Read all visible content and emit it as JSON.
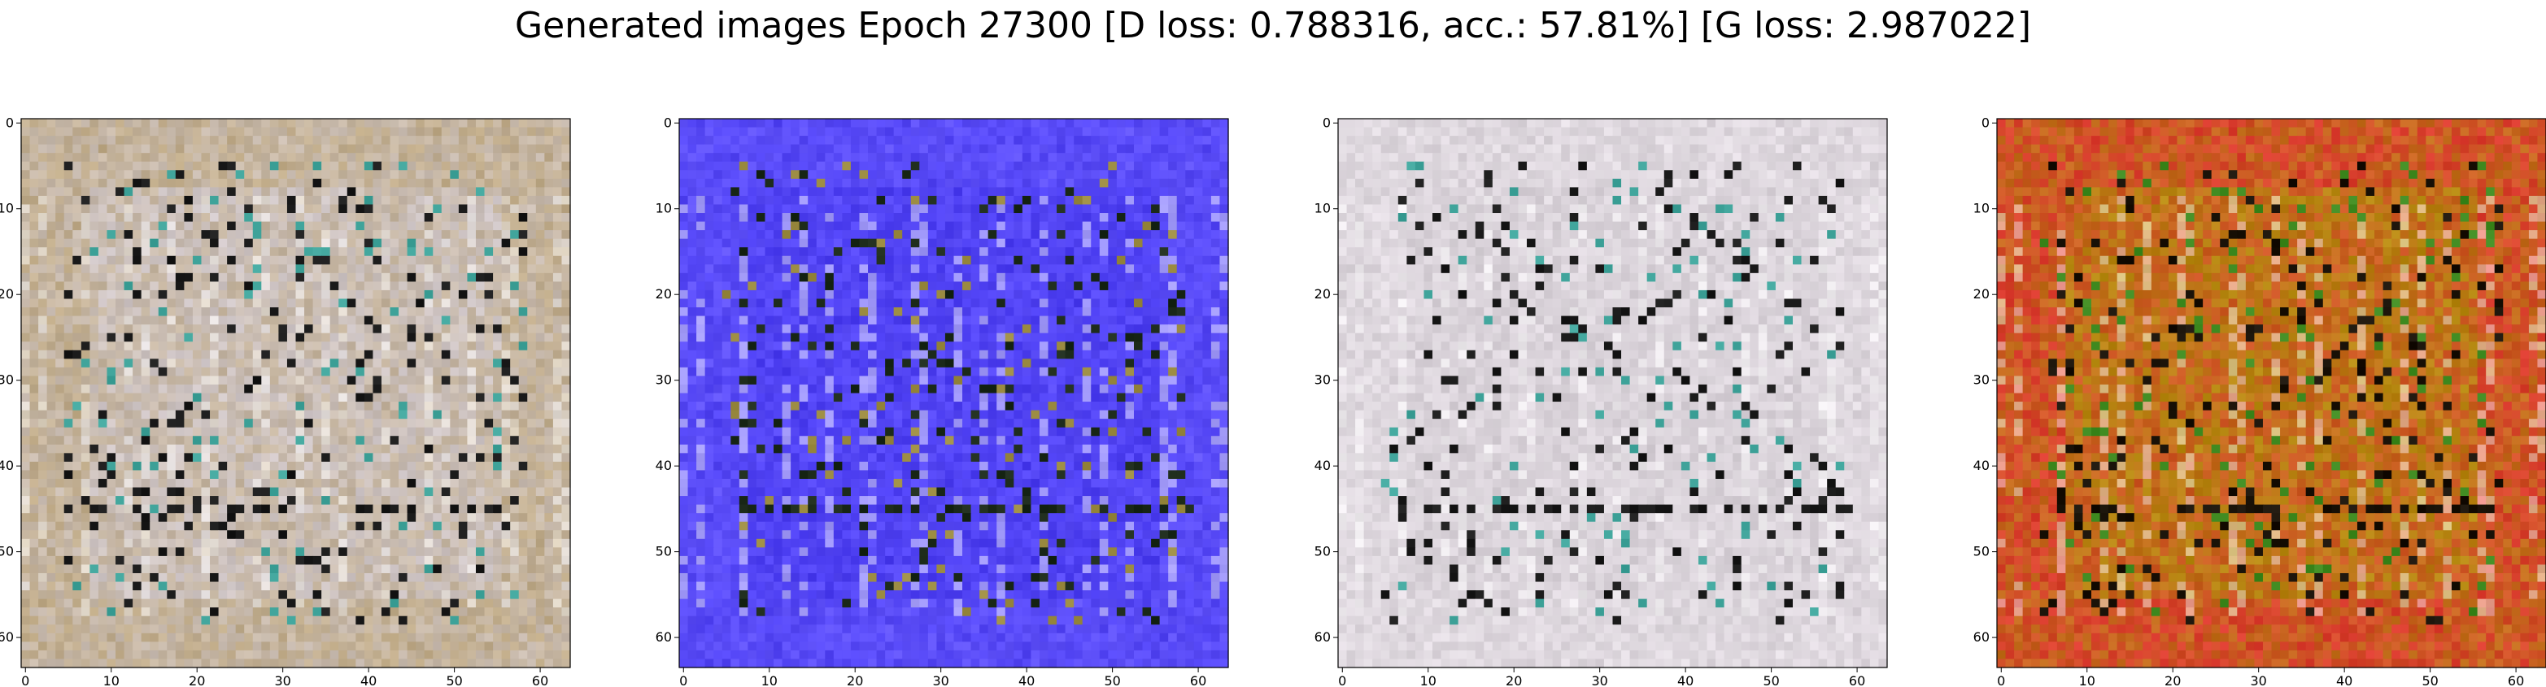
{
  "figure": {
    "suptitle": "Generated images Epoch 27300 [D loss: 0.788316, acc.: 57.81%] [G loss: 2.987022]"
  },
  "chart_data": [
    {
      "type": "heatmap",
      "title": "",
      "xlabel": "",
      "ylabel": "",
      "xlim": [
        -0.5,
        63.5
      ],
      "ylim": [
        63.5,
        -0.5
      ],
      "xticks": [
        0,
        10,
        20,
        30,
        40,
        50,
        60
      ],
      "yticks": [
        0,
        10,
        20,
        30,
        40,
        50,
        60
      ],
      "grid": false,
      "colors": {
        "base": "#cfc6c8",
        "accent": "#b9a070",
        "dark": "#1a1a1a",
        "teal": "#3fa39a"
      }
    },
    {
      "type": "heatmap",
      "title": "",
      "xlabel": "",
      "ylabel": "",
      "xlim": [
        -0.5,
        63.5
      ],
      "ylim": [
        63.5,
        -0.5
      ],
      "xticks": [
        0,
        10,
        20,
        30,
        40,
        50,
        60
      ],
      "yticks": [
        0,
        10,
        20,
        30,
        40,
        50,
        60
      ],
      "grid": false,
      "colors": {
        "base": "#4a3cf0",
        "accent": "#6a5cff",
        "dark": "#1c2a1a",
        "teal": "#9a8a40"
      }
    },
    {
      "type": "heatmap",
      "title": "",
      "xlabel": "",
      "ylabel": "",
      "xlim": [
        -0.5,
        63.5
      ],
      "ylim": [
        63.5,
        -0.5
      ],
      "xticks": [
        0,
        10,
        20,
        30,
        40,
        50,
        60
      ],
      "yticks": [
        0,
        10,
        20,
        30,
        40,
        50,
        60
      ],
      "grid": false,
      "colors": {
        "base": "#d6cfd6",
        "accent": "#e8e2e8",
        "dark": "#1a1a1a",
        "teal": "#3fa39a"
      }
    },
    {
      "type": "heatmap",
      "title": "",
      "xlabel": "",
      "ylabel": "",
      "xlim": [
        -0.5,
        63.5
      ],
      "ylim": [
        63.5,
        -0.5
      ],
      "xticks": [
        0,
        10,
        20,
        30,
        40,
        50,
        60
      ],
      "yticks": [
        0,
        10,
        20,
        30,
        40,
        50,
        60
      ],
      "grid": false,
      "colors": {
        "base": "#b58a10",
        "accent": "#e8203a",
        "dark": "#1a1208",
        "teal": "#3f8a20"
      }
    }
  ]
}
